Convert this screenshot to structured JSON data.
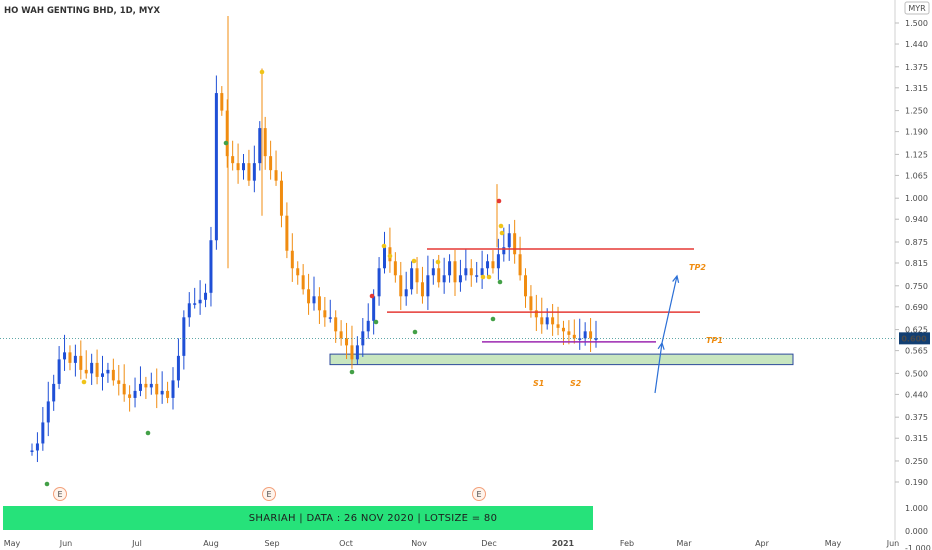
{
  "title": "HO WAH GENTING BHD, 1D, MYX",
  "currency": "MYR",
  "last_price": "0.600",
  "banner": "SHARIAH   |   DATA : 26 NOV 2020   |   LOTSIZE = 80",
  "colors": {
    "up": "#1f4fd6",
    "down": "#f08c10",
    "resistance": "#e53935",
    "support": "#9c27b0",
    "zone_fill": "#c8e6c0",
    "zone_stroke": "#2d4a9c",
    "arrow": "#2b6fd6",
    "banner": "#26e27a"
  },
  "chart_data": {
    "type": "candlestick",
    "y_ticks": [
      "1.500",
      "1.440",
      "1.375",
      "1.315",
      "1.250",
      "1.190",
      "1.125",
      "1.065",
      "1.000",
      "0.940",
      "0.875",
      "0.815",
      "0.750",
      "0.690",
      "0.625",
      "0.565",
      "0.500",
      "0.440",
      "0.375",
      "0.315",
      "0.250",
      "0.190"
    ],
    "volume_ticks": [
      "1.000",
      "0.000",
      "-1.000"
    ],
    "x_ticks": [
      "May",
      "Jun",
      "Jul",
      "Aug",
      "Sep",
      "Oct",
      "Nov",
      "Dec",
      "2021",
      "Feb",
      "Mar",
      "Apr",
      "May",
      "Jun"
    ],
    "earnings_markers": [
      "E",
      "E",
      "E"
    ],
    "series": [
      {
        "values": [
          0.28,
          0.3,
          0.36,
          0.42,
          0.47,
          0.54,
          0.56,
          0.53,
          0.55,
          0.51,
          0.5,
          0.53,
          0.49,
          0.5,
          0.51,
          0.48,
          0.47,
          0.44,
          0.43,
          0.45,
          0.47,
          0.46,
          0.47,
          0.44,
          0.45,
          0.43,
          0.48,
          0.55,
          0.66,
          0.7,
          0.7,
          0.71,
          0.73,
          0.88,
          1.3,
          1.25,
          1.12,
          1.1,
          1.08,
          1.1,
          1.05,
          1.1,
          1.2,
          1.12,
          1.08,
          1.05,
          0.95,
          0.85,
          0.8,
          0.78,
          0.74,
          0.7,
          0.72,
          0.68,
          0.66,
          0.66,
          0.62,
          0.6,
          0.58,
          0.54,
          0.58,
          0.62,
          0.65,
          0.72,
          0.8,
          0.86,
          0.82,
          0.78,
          0.72,
          0.74,
          0.8,
          0.76,
          0.72,
          0.78,
          0.8,
          0.76,
          0.78,
          0.82,
          0.76,
          0.78,
          0.8,
          0.78,
          0.78,
          0.8,
          0.82,
          0.8,
          0.84,
          0.86,
          0.9,
          0.84,
          0.78,
          0.72,
          0.68,
          0.66,
          0.64,
          0.66,
          0.64,
          0.63,
          0.62,
          0.61,
          0.6,
          0.6,
          0.62,
          0.6,
          0.6
        ]
      }
    ],
    "annotations": [
      {
        "label": "TP2",
        "price": 0.855
      },
      {
        "label": "TP1",
        "price": 0.675
      },
      {
        "label": "S1",
        "price": 0.59
      },
      {
        "label": "S2",
        "price": 0.59
      }
    ],
    "support_zone": [
      0.525,
      0.555
    ],
    "ylim": [
      0.19,
      1.53
    ]
  }
}
